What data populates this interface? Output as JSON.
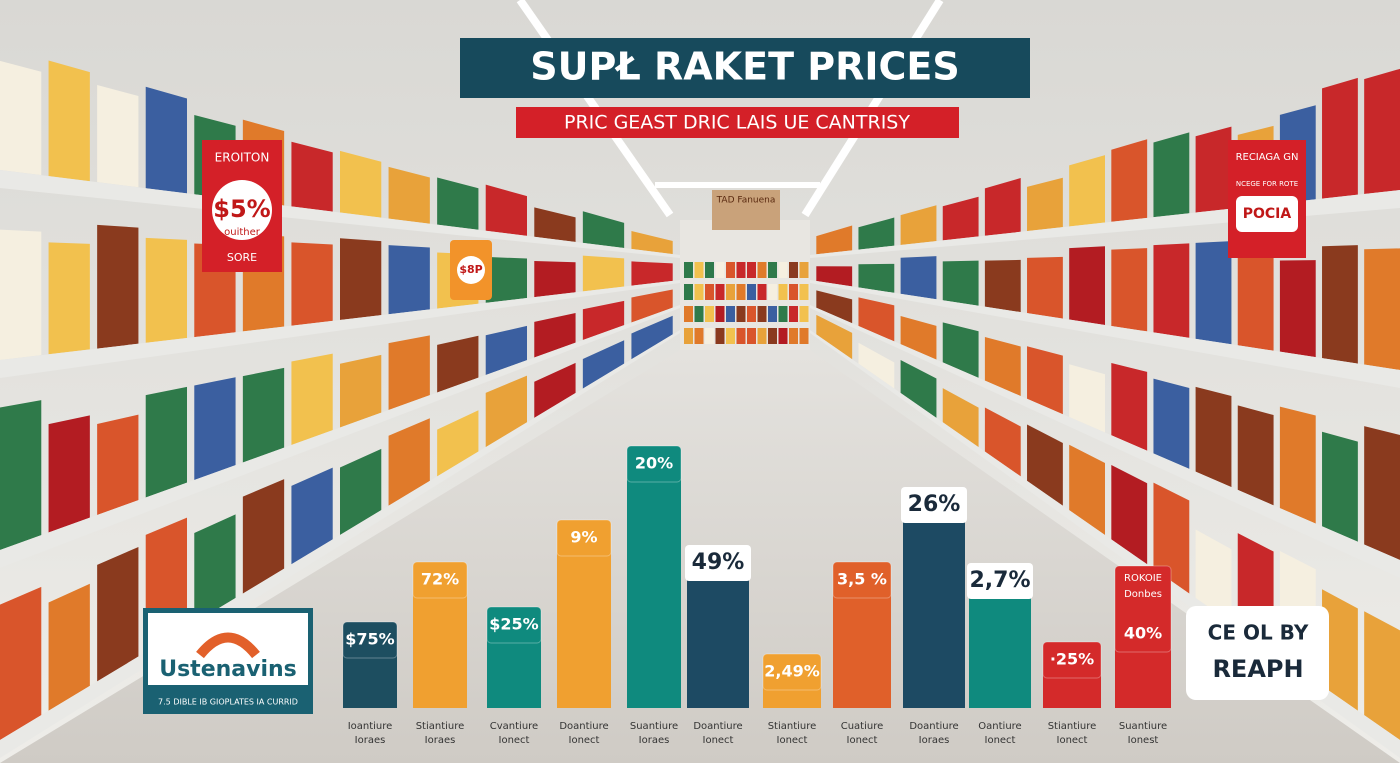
{
  "title": "SUPŁ RAKET PRICES",
  "subtitle": "PRIC GEAST DRIC LAIS UE CANTRISY",
  "back_sign": "TAD Fanuena",
  "left_sign": {
    "top": "EROITON",
    "big": "$5%",
    "mid": "ouither",
    "bottom": "SORE"
  },
  "small_sign": "$8P",
  "right_sign": {
    "top": "RECIAGA GN",
    "small": "NCEGE FOR ROTE",
    "logo": "POCIA"
  },
  "logo": {
    "name": "Ustenavins",
    "tagline": "7.5 DIBLE IB GIOPLATES IA CURRID"
  },
  "badge": {
    "line1": "CE OL BY",
    "line2": "REAPH"
  },
  "bars": [
    {
      "label": "$75%",
      "caption": [
        "Ioantiure",
        "Ioraes"
      ]
    },
    {
      "label": "72%",
      "caption": [
        "Stiantiure",
        "Ioraes"
      ]
    },
    {
      "label": "$25%",
      "caption": [
        "Cvantiure",
        "Ionect"
      ]
    },
    {
      "label": "9%",
      "caption": [
        "Doantiure",
        "Ionect"
      ]
    },
    {
      "label": "20%",
      "caption": [
        "Suantiure",
        "Ioraes"
      ]
    },
    {
      "label": "49%",
      "caption": [
        "Doantiure",
        "Ionect"
      ]
    },
    {
      "label": "2,49%",
      "caption": [
        "Stiantiure",
        "Ionect"
      ]
    },
    {
      "label": "3,5 %",
      "caption": [
        "Cuatiure",
        "Ionect"
      ]
    },
    {
      "label": "26%",
      "caption": [
        "Doantiure",
        "Ioraes"
      ]
    },
    {
      "label": "2,7%",
      "caption": [
        "Oantiure",
        "Ionect"
      ]
    },
    {
      "label": "·25%",
      "caption": [
        "Stiantiure",
        "Ionect"
      ]
    },
    {
      "label": "40%",
      "header": [
        "ROKOIE",
        "Donbes"
      ],
      "caption": [
        "Suantiure",
        "Ionest"
      ]
    }
  ]
}
